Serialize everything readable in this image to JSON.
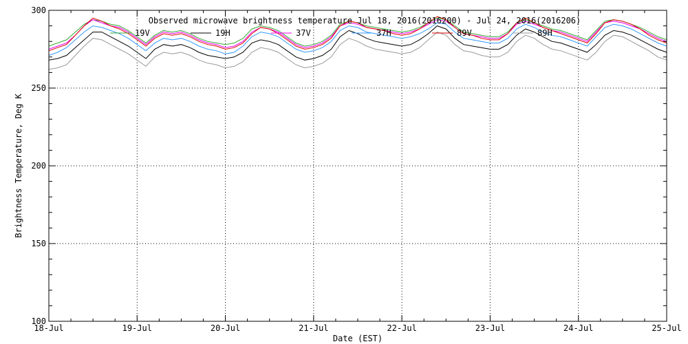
{
  "chart_data": {
    "type": "line",
    "title": "Observed microwave brightness temperature Jul 18, 2016(2016200) - Jul 24, 2016(2016206)",
    "xlabel": "Date (EST)",
    "ylabel": "Brightness Temperature, Deg K",
    "ylim": [
      100,
      300
    ],
    "xlim": [
      0,
      7
    ],
    "x_unit": "days since Jul 18",
    "xticks": [
      {
        "x": 0,
        "label": "18-Jul"
      },
      {
        "x": 1,
        "label": "19-Jul"
      },
      {
        "x": 2,
        "label": "20-Jul"
      },
      {
        "x": 3,
        "label": "21-Jul"
      },
      {
        "x": 4,
        "label": "22-Jul"
      },
      {
        "x": 5,
        "label": "23-Jul"
      },
      {
        "x": 6,
        "label": "24-Jul"
      },
      {
        "x": 7,
        "label": "25-Jul"
      }
    ],
    "yticks": [
      100,
      150,
      200,
      250,
      300
    ],
    "grid": true,
    "legend_placement": "top, inside plot",
    "x": [
      0.0,
      0.1,
      0.2,
      0.3,
      0.4,
      0.5,
      0.6,
      0.7,
      0.8,
      0.9,
      1.0,
      1.1,
      1.2,
      1.3,
      1.4,
      1.5,
      1.6,
      1.7,
      1.8,
      1.9,
      2.0,
      2.1,
      2.2,
      2.3,
      2.4,
      2.5,
      2.6,
      2.7,
      2.8,
      2.9,
      3.0,
      3.1,
      3.2,
      3.3,
      3.4,
      3.5,
      3.6,
      3.7,
      3.8,
      3.9,
      4.0,
      4.1,
      4.2,
      4.3,
      4.4,
      4.5,
      4.6,
      4.7,
      4.8,
      4.9,
      5.0,
      5.1,
      5.2,
      5.3,
      5.4,
      5.5,
      5.6,
      5.7,
      5.8,
      5.9,
      6.0,
      6.1,
      6.2,
      6.3,
      6.4,
      6.5,
      6.6,
      6.7,
      6.8,
      6.9,
      7.0
    ],
    "series": [
      {
        "name": "19V",
        "color": "#33aa33",
        "values": [
          277,
          279,
          281,
          286,
          291,
          294,
          293,
          291,
          290,
          287,
          283,
          279,
          284,
          287,
          286,
          287,
          285,
          282,
          280,
          279,
          278,
          279,
          282,
          288,
          290,
          289,
          287,
          283,
          279,
          277,
          278,
          280,
          284,
          291,
          293,
          292,
          290,
          289,
          288,
          287,
          286,
          287,
          289,
          292,
          295,
          294,
          290,
          286,
          285,
          284,
          283,
          283,
          286,
          292,
          294,
          292,
          290,
          288,
          287,
          285,
          283,
          281,
          287,
          293,
          294,
          293,
          291,
          289,
          286,
          283,
          281
        ]
      },
      {
        "name": "19H",
        "color": "#000000",
        "values": [
          268,
          269,
          271,
          276,
          281,
          286,
          286,
          283,
          280,
          277,
          273,
          269,
          275,
          278,
          277,
          278,
          276,
          273,
          271,
          270,
          269,
          270,
          273,
          279,
          281,
          280,
          278,
          274,
          270,
          268,
          269,
          271,
          275,
          283,
          287,
          285,
          282,
          280,
          279,
          278,
          277,
          278,
          281,
          285,
          290,
          288,
          282,
          278,
          277,
          276,
          275,
          275,
          278,
          284,
          288,
          286,
          283,
          280,
          279,
          277,
          275,
          273,
          278,
          284,
          287,
          286,
          284,
          281,
          278,
          275,
          273
        ]
      },
      {
        "name": "37V",
        "color": "#ee00ee",
        "values": [
          275,
          277,
          279,
          284,
          290,
          294,
          292,
          290,
          289,
          286,
          282,
          278,
          283,
          286,
          285,
          286,
          284,
          281,
          279,
          278,
          276,
          277,
          280,
          286,
          289,
          288,
          286,
          282,
          278,
          276,
          277,
          279,
          283,
          290,
          292,
          291,
          289,
          288,
          287,
          286,
          285,
          286,
          288,
          291,
          294,
          293,
          289,
          285,
          284,
          283,
          282,
          282,
          285,
          291,
          293,
          291,
          289,
          287,
          286,
          284,
          282,
          280,
          286,
          292,
          293,
          292,
          290,
          288,
          285,
          282,
          280
        ]
      },
      {
        "name": "37H",
        "color": "#3399ff",
        "values": [
          271,
          273,
          276,
          281,
          286,
          290,
          289,
          287,
          285,
          282,
          278,
          274,
          279,
          282,
          281,
          282,
          280,
          277,
          275,
          274,
          272,
          273,
          277,
          283,
          286,
          285,
          283,
          279,
          275,
          273,
          274,
          276,
          280,
          287,
          290,
          289,
          286,
          285,
          284,
          283,
          282,
          283,
          285,
          288,
          292,
          291,
          286,
          282,
          281,
          280,
          279,
          279,
          282,
          288,
          291,
          289,
          286,
          284,
          283,
          281,
          279,
          277,
          283,
          289,
          291,
          290,
          288,
          285,
          282,
          279,
          277
        ]
      },
      {
        "name": "89V",
        "color": "#dd0000",
        "values": [
          274,
          276,
          278,
          284,
          290,
          295,
          293,
          290,
          288,
          285,
          281,
          277,
          282,
          285,
          284,
          285,
          283,
          280,
          278,
          277,
          275,
          276,
          279,
          285,
          289,
          288,
          285,
          281,
          277,
          275,
          276,
          278,
          282,
          290,
          293,
          292,
          289,
          288,
          287,
          285,
          284,
          285,
          288,
          292,
          296,
          294,
          289,
          285,
          284,
          282,
          281,
          281,
          285,
          292,
          295,
          292,
          289,
          287,
          285,
          283,
          281,
          279,
          285,
          292,
          294,
          293,
          291,
          288,
          284,
          281,
          279
        ]
      },
      {
        "name": "89H",
        "color": "#999999",
        "values": [
          262,
          263,
          265,
          271,
          277,
          282,
          281,
          278,
          275,
          272,
          268,
          264,
          270,
          273,
          272,
          273,
          271,
          268,
          266,
          265,
          263,
          264,
          267,
          273,
          276,
          275,
          273,
          269,
          265,
          263,
          264,
          266,
          270,
          278,
          282,
          280,
          277,
          275,
          274,
          273,
          272,
          273,
          276,
          281,
          286,
          284,
          278,
          274,
          273,
          271,
          270,
          270,
          273,
          280,
          284,
          282,
          278,
          275,
          274,
          272,
          270,
          268,
          273,
          280,
          284,
          283,
          280,
          277,
          274,
          270,
          268
        ]
      }
    ]
  }
}
